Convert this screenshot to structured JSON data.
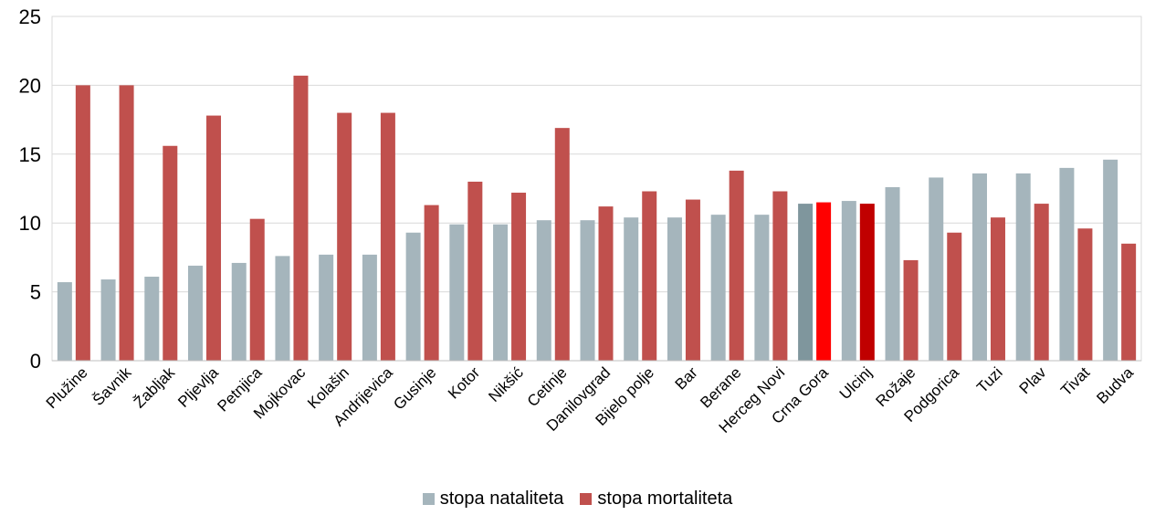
{
  "chart_data": {
    "type": "bar",
    "categories": [
      "Plužine",
      "Šavnik",
      "Žabljak",
      "Pljevlja",
      "Petnjica",
      "Mojkovac",
      "Kolašin",
      "Andrijevica",
      "Gusinje",
      "Kotor",
      "Nikšić",
      "Cetinje",
      "Danilovgrad",
      "Bijelo polje",
      "Bar",
      "Berane",
      "Herceg Novi",
      "Crna Gora",
      "Ulcinj",
      "Rožaje",
      "Podgorica",
      "Tuzi",
      "Plav",
      "Tivat",
      "Budva"
    ],
    "series": [
      {
        "name": "stopa nataliteta",
        "color": "#a5b5bc",
        "values": [
          5.7,
          5.9,
          6.1,
          6.9,
          7.1,
          7.6,
          7.7,
          7.7,
          9.3,
          9.9,
          9.9,
          10.2,
          10.2,
          10.4,
          10.4,
          10.6,
          10.6,
          11.4,
          11.6,
          12.6,
          13.3,
          13.6,
          13.6,
          14.0,
          14.6
        ]
      },
      {
        "name": "stopa mortaliteta",
        "color": "#c0504d",
        "values": [
          20.0,
          20.0,
          15.6,
          17.8,
          10.3,
          20.7,
          18.0,
          18.0,
          11.3,
          13.0,
          12.2,
          16.9,
          11.2,
          12.3,
          11.7,
          13.8,
          12.3,
          11.5,
          11.4,
          7.3,
          9.3,
          10.4,
          11.4,
          9.6,
          8.5
        ]
      }
    ],
    "highlight": {
      "category": "Crna Gora",
      "colors": [
        "#7f969d",
        "#ff0000"
      ]
    },
    "highlight_alt": {
      "category": "Ulcinj",
      "colors": [
        "#a5b5bc",
        "#c00000"
      ]
    },
    "ylim": [
      0,
      25
    ],
    "yticks": [
      0,
      5,
      10,
      15,
      20,
      25
    ],
    "grid": true,
    "legend_position": "bottom",
    "title": "",
    "xlabel": "",
    "ylabel": ""
  },
  "legend": {
    "items": [
      {
        "label": "stopa nataliteta",
        "color": "#a5b5bc"
      },
      {
        "label": "stopa mortaliteta",
        "color": "#c0504d"
      }
    ]
  }
}
